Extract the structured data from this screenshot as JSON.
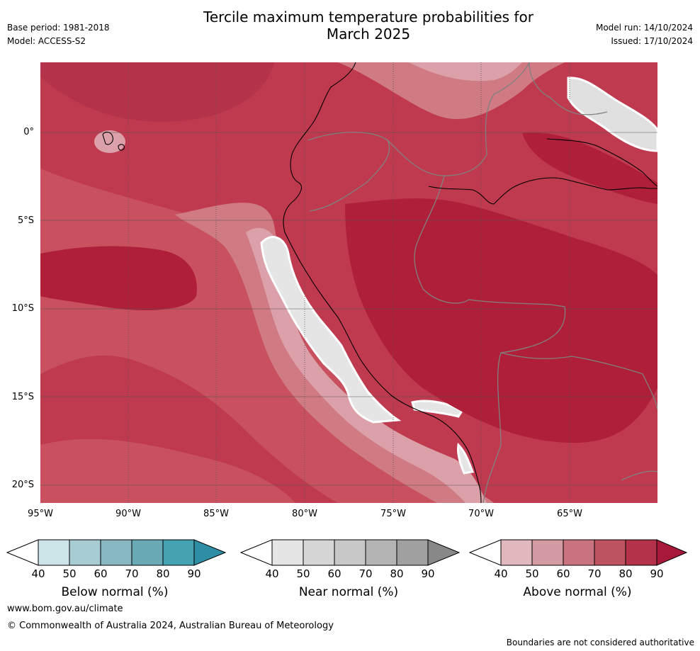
{
  "header": {
    "title_line1": "Tercile maximum temperature probabilities for",
    "title_line2": "March 2025",
    "base_period": "Base period: 1981-2018",
    "model": "Model: ACCESS-S2",
    "model_run": "Model run: 14/10/2024",
    "issued": "Issued: 17/10/2024"
  },
  "map": {
    "lat_labels": [
      "0°",
      "5°S",
      "10°S",
      "15°S",
      "20°S"
    ],
    "lon_labels": [
      "95°W",
      "90°W",
      "85°W",
      "80°W",
      "75°W",
      "70°W",
      "65°W"
    ],
    "layer_colors": {
      "above_90": "#b01f3a",
      "above_80": "#bf3a4e",
      "above_70": "#c8505f",
      "above_60": "#d07a84",
      "above_50": "#dca0a8",
      "near_normal": "#e5e5e5",
      "coastline": "#000000",
      "borders": "#808080"
    }
  },
  "colorbars": [
    {
      "title": "Below normal (%)",
      "ticks": [
        "40",
        "50",
        "60",
        "70",
        "80",
        "90"
      ],
      "colors": [
        "#cce4e8",
        "#a8ccd3",
        "#88b8c4",
        "#6aaab6",
        "#46a2b2",
        "#2e8ea4"
      ]
    },
    {
      "title": "Near normal (%)",
      "ticks": [
        "40",
        "50",
        "60",
        "70",
        "80",
        "90"
      ],
      "colors": [
        "#e5e5e5",
        "#d6d6d6",
        "#c8c8c8",
        "#b4b4b4",
        "#a0a0a0",
        "#888888"
      ]
    },
    {
      "title": "Above normal (%)",
      "ticks": [
        "40",
        "50",
        "60",
        "70",
        "80",
        "90"
      ],
      "colors": [
        "#e0b8be",
        "#d39aa2",
        "#c8737f",
        "#bd5361",
        "#b4334a",
        "#a8183a"
      ]
    }
  ],
  "footer": {
    "website": "www.bom.gov.au/climate",
    "copyright": "© Commonwealth of Australia 2024, Australian Bureau of Meteorology",
    "disclaimer": "Boundaries are not considered authoritative"
  }
}
